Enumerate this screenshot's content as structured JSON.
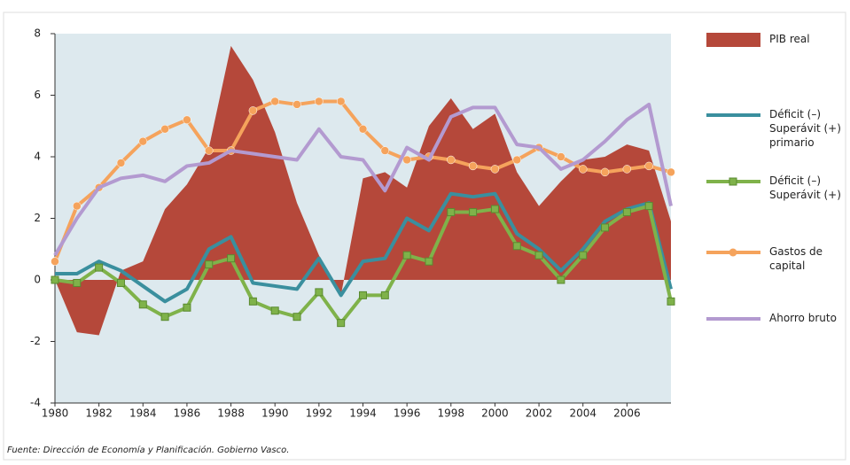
{
  "chart_data": {
    "type": "combo",
    "x": [
      1980,
      1981,
      1982,
      1983,
      1984,
      1985,
      1986,
      1987,
      1988,
      1989,
      1990,
      1991,
      1992,
      1993,
      1994,
      1995,
      1996,
      1997,
      1998,
      1999,
      2000,
      2001,
      2002,
      2003,
      2004,
      2005,
      2006,
      2007,
      2008
    ],
    "xlim": [
      1980,
      2008
    ],
    "xticks": [
      1980,
      1982,
      1984,
      1986,
      1988,
      1990,
      1992,
      1994,
      1996,
      1998,
      2000,
      2002,
      2004,
      2006
    ],
    "ylim": [
      -4,
      8
    ],
    "yticks": [
      -4,
      -2,
      0,
      2,
      4,
      6,
      8
    ],
    "series": [
      {
        "name": "PIB real",
        "kind": "area",
        "color": "#b5483a",
        "values": [
          0,
          -1.7,
          -1.8,
          0.3,
          0.6,
          2.3,
          3.1,
          4.3,
          7.6,
          6.5,
          4.8,
          2.5,
          0.8,
          -0.5,
          3.3,
          3.5,
          3.0,
          5.0,
          5.9,
          4.9,
          5.4,
          3.5,
          2.4,
          3.2,
          3.9,
          4.0,
          4.4,
          4.2,
          1.9
        ]
      },
      {
        "name": "Déficit (–) Superávit (+) primario",
        "kind": "line",
        "color": "#3a8f9e",
        "values": [
          0.2,
          0.2,
          0.6,
          0.3,
          -0.2,
          -0.7,
          -0.3,
          1.0,
          1.4,
          -0.1,
          -0.2,
          -0.3,
          0.7,
          -0.5,
          0.6,
          0.7,
          2.0,
          1.6,
          2.8,
          2.7,
          2.8,
          1.5,
          1.0,
          0.3,
          1.0,
          1.9,
          2.3,
          2.5,
          -0.3
        ]
      },
      {
        "name": "Déficit (–) Superávit (+)",
        "kind": "line",
        "marker": "square",
        "color": "#7fb24a",
        "values": [
          0,
          -0.1,
          0.4,
          -0.1,
          -0.8,
          -1.2,
          -0.9,
          0.5,
          0.7,
          -0.7,
          -1.0,
          -1.2,
          -0.4,
          -1.4,
          -0.5,
          -0.5,
          0.8,
          0.6,
          2.2,
          2.2,
          2.3,
          1.1,
          0.8,
          0.0,
          0.8,
          1.7,
          2.2,
          2.4,
          -0.7
        ]
      },
      {
        "name": "Gastos de capital",
        "kind": "line",
        "marker": "circle",
        "color": "#f5a35c",
        "values": [
          0.6,
          2.4,
          3.0,
          3.8,
          4.5,
          4.9,
          5.2,
          4.2,
          4.2,
          5.5,
          5.8,
          5.7,
          5.8,
          5.8,
          4.9,
          4.2,
          3.9,
          4.0,
          3.9,
          3.7,
          3.6,
          3.9,
          4.3,
          4.0,
          3.6,
          3.5,
          3.6,
          3.7,
          3.5
        ]
      },
      {
        "name": "Ahorro bruto",
        "kind": "line",
        "color": "#b39ad0",
        "values": [
          0.8,
          2.0,
          3.0,
          3.3,
          3.4,
          3.2,
          3.7,
          3.8,
          4.2,
          4.1,
          4.0,
          3.9,
          4.9,
          4.0,
          3.9,
          2.9,
          4.3,
          3.9,
          5.3,
          5.6,
          5.6,
          4.4,
          4.3,
          3.6,
          3.9,
          4.5,
          5.2,
          5.7,
          2.4
        ]
      }
    ],
    "source": "Fuente: Dirección de Economía y Planificación. Gobierno Vasco."
  }
}
